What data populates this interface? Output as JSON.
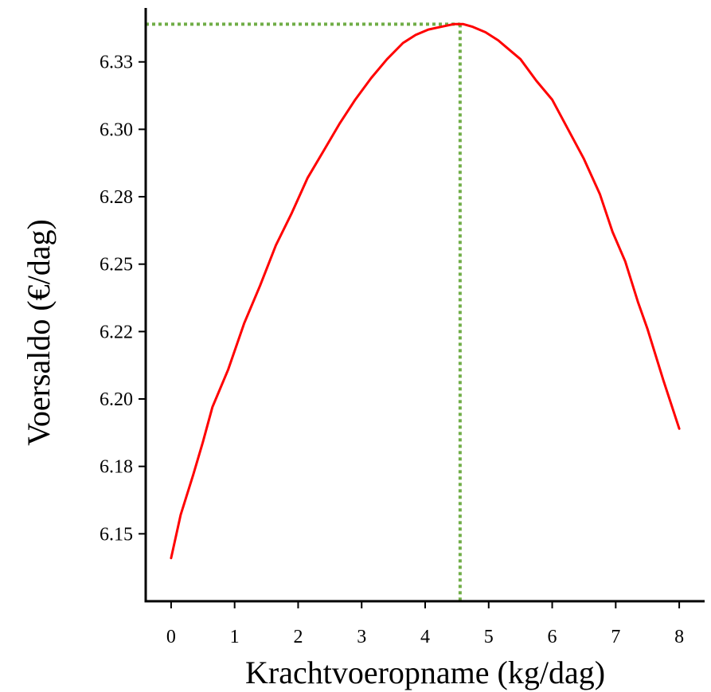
{
  "chart_data": {
    "type": "line",
    "title": "",
    "xlabel": "Krachtvoeropname (kg/dag)",
    "ylabel": "Voersaldo (€/dag)",
    "xlim": [
      -0.4,
      8.4
    ],
    "ylim": [
      6.125,
      6.345
    ],
    "x_ticks": [
      "0",
      "1",
      "2",
      "3",
      "4",
      "5",
      "6",
      "7",
      "8"
    ],
    "y_ticks": [
      "6.15",
      "6.18",
      "6.20",
      "6.22",
      "6.25",
      "6.28",
      "6.30",
      "6.33"
    ],
    "y_tick_values": [
      6.15,
      6.175,
      6.2,
      6.225,
      6.25,
      6.275,
      6.3,
      6.325
    ],
    "series": [
      {
        "color": "#ff0000",
        "x": [
          0,
          0.15,
          0.35,
          0.5,
          0.65,
          0.9,
          1.15,
          1.4,
          1.65,
          1.9,
          2.15,
          2.4,
          2.65,
          2.9,
          3.15,
          3.4,
          3.65,
          3.85,
          4.05,
          4.25,
          4.45,
          4.6,
          4.75,
          4.95,
          5.15,
          5.35,
          5.5,
          5.75,
          6.0,
          6.25,
          6.5,
          6.75,
          6.95,
          7.15,
          7.35,
          7.5,
          7.75,
          8.0
        ],
        "y": [
          6.141,
          6.157,
          6.172,
          6.184,
          6.197,
          6.211,
          6.228,
          6.242,
          6.257,
          6.269,
          6.282,
          6.292,
          6.302,
          6.311,
          6.319,
          6.326,
          6.332,
          6.335,
          6.337,
          6.338,
          6.339,
          6.339,
          6.338,
          6.336,
          6.333,
          6.329,
          6.326,
          6.318,
          6.311,
          6.3,
          6.289,
          6.276,
          6.262,
          6.251,
          6.236,
          6.226,
          6.207,
          6.189
        ]
      }
    ],
    "reference_lines": {
      "color": "#70ad47",
      "x": 4.55,
      "y": 6.339,
      "style": "dotted"
    },
    "grid": false,
    "legend": "none"
  }
}
